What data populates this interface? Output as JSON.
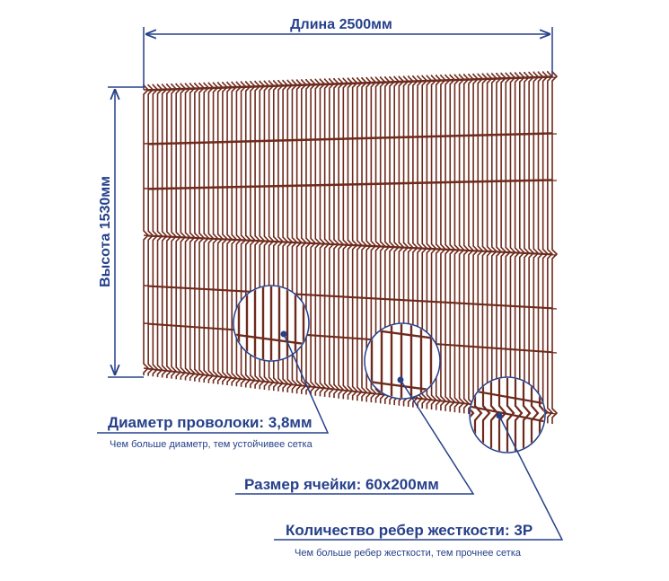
{
  "dimensions": {
    "length": "Длина 2500мм",
    "height": "Высота 1530мм"
  },
  "callouts": [
    {
      "label": "Диаметр проволоки: 3,8мм",
      "note": "Чем больше диаметр, тем устойчивее сетка"
    },
    {
      "label": "Размер ячейки: 60х200мм"
    },
    {
      "label": "Количество ребер жесткости: 3Р",
      "note": "Чем больше ребер жесткости, тем прочнее сетка"
    }
  ]
}
